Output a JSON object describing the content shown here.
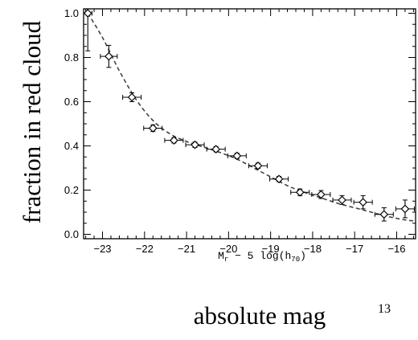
{
  "chart_data": {
    "type": "scatter",
    "title": "",
    "ylabel": "fraction in red cloud",
    "xlabel_main": "M",
    "xlabel_sub": "r",
    "xlabel_rest": " − 5 log(h",
    "xlabel_sub2": "70",
    "xlabel_end": ")",
    "xlim": [
      -23.45,
      -15.55
    ],
    "ylim": [
      -0.02,
      1.02
    ],
    "xticks": [
      -23,
      -22,
      -21,
      -20,
      -19,
      -18,
      -17,
      -16
    ],
    "xtick_labels": [
      "−23",
      "−22",
      "−21",
      "−20",
      "−19",
      "−18",
      "−17",
      "−16"
    ],
    "yticks": [
      0.0,
      0.2,
      0.4,
      0.6,
      0.8,
      1.0
    ],
    "ytick_labels": [
      "0.0",
      "0.2",
      "0.4",
      "0.6",
      "0.8",
      "1.0"
    ],
    "points": [
      {
        "x": -23.35,
        "y": 1.0,
        "xerr": 0.1,
        "yerr_lo": 0.17,
        "yerr_hi": 0.0
      },
      {
        "x": -22.85,
        "y": 0.805,
        "xerr": 0.2,
        "yerr_lo": 0.05,
        "yerr_hi": 0.05
      },
      {
        "x": -22.3,
        "y": 0.62,
        "xerr": 0.22,
        "yerr_lo": 0.02,
        "yerr_hi": 0.02
      },
      {
        "x": -21.8,
        "y": 0.48,
        "xerr": 0.22,
        "yerr_lo": 0.015,
        "yerr_hi": 0.015
      },
      {
        "x": -21.3,
        "y": 0.425,
        "xerr": 0.22,
        "yerr_lo": 0.012,
        "yerr_hi": 0.012
      },
      {
        "x": -20.8,
        "y": 0.405,
        "xerr": 0.22,
        "yerr_lo": 0.012,
        "yerr_hi": 0.012
      },
      {
        "x": -20.3,
        "y": 0.385,
        "xerr": 0.22,
        "yerr_lo": 0.012,
        "yerr_hi": 0.012
      },
      {
        "x": -19.8,
        "y": 0.355,
        "xerr": 0.22,
        "yerr_lo": 0.012,
        "yerr_hi": 0.012
      },
      {
        "x": -19.3,
        "y": 0.31,
        "xerr": 0.22,
        "yerr_lo": 0.012,
        "yerr_hi": 0.012
      },
      {
        "x": -18.8,
        "y": 0.25,
        "xerr": 0.22,
        "yerr_lo": 0.012,
        "yerr_hi": 0.012
      },
      {
        "x": -18.3,
        "y": 0.19,
        "xerr": 0.22,
        "yerr_lo": 0.015,
        "yerr_hi": 0.015
      },
      {
        "x": -17.8,
        "y": 0.18,
        "xerr": 0.22,
        "yerr_lo": 0.018,
        "yerr_hi": 0.018
      },
      {
        "x": -17.3,
        "y": 0.155,
        "xerr": 0.22,
        "yerr_lo": 0.02,
        "yerr_hi": 0.02
      },
      {
        "x": -16.8,
        "y": 0.145,
        "xerr": 0.22,
        "yerr_lo": 0.03,
        "yerr_hi": 0.03
      },
      {
        "x": -16.3,
        "y": 0.09,
        "xerr": 0.22,
        "yerr_lo": 0.03,
        "yerr_hi": 0.03
      },
      {
        "x": -15.8,
        "y": 0.115,
        "xerr": 0.22,
        "yerr_lo": 0.04,
        "yerr_hi": 0.04
      }
    ],
    "fit_curve": {
      "style": "dashed",
      "x": [
        -23.35,
        -23.0,
        -22.6,
        -22.2,
        -21.8,
        -21.4,
        -21.0,
        -20.6,
        -20.2,
        -19.8,
        -19.4,
        -19.0,
        -18.6,
        -18.2,
        -17.8,
        -17.4,
        -17.0,
        -16.6,
        -16.2,
        -15.8,
        -15.55
      ],
      "y": [
        1.0,
        0.89,
        0.74,
        0.61,
        0.515,
        0.455,
        0.42,
        0.395,
        0.37,
        0.34,
        0.3,
        0.26,
        0.22,
        0.19,
        0.165,
        0.14,
        0.12,
        0.1,
        0.08,
        0.065,
        0.06
      ]
    }
  },
  "caption": "absolute mag",
  "page_number": "13"
}
